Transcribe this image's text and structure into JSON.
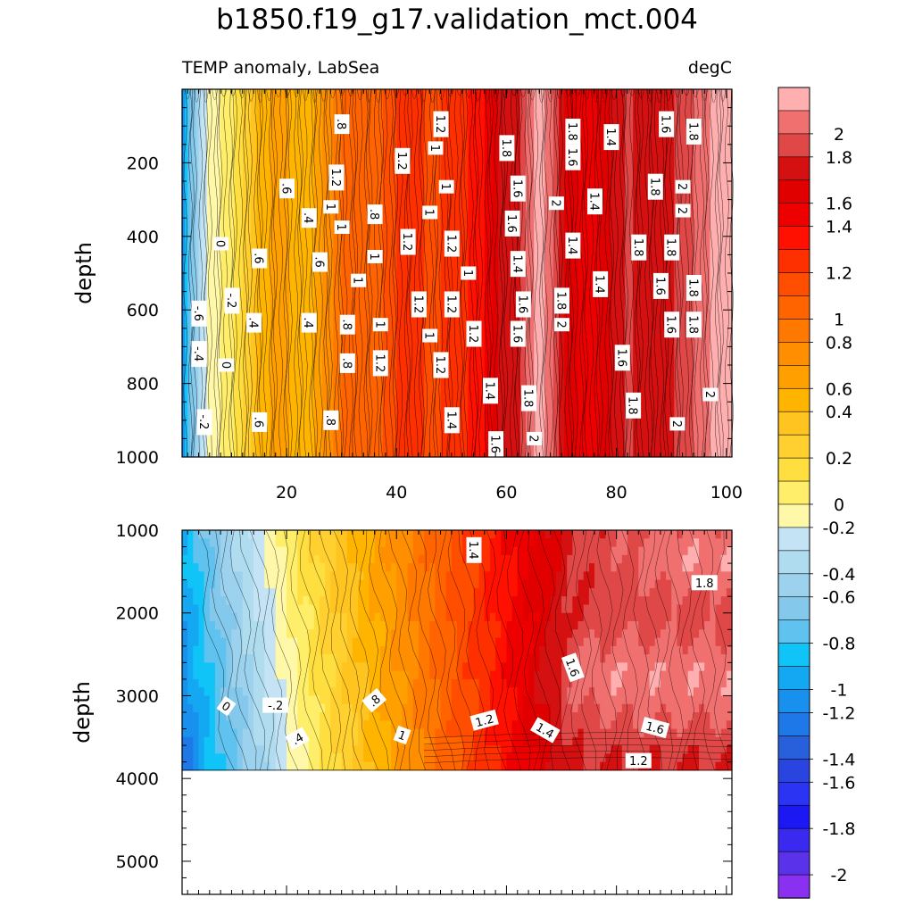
{
  "title": "b1850.f19_g17.validation_mct.004",
  "chart_data": [
    {
      "type": "contour",
      "panel": "upper",
      "left_label": "TEMP anomaly, LabSea",
      "right_label": "degC",
      "ylabel": "depth",
      "xlabel": "",
      "xlim": [
        1,
        101
      ],
      "ylim": [
        1000,
        0
      ],
      "x_ticks": [
        "20",
        "40",
        "60",
        "80",
        "100"
      ],
      "y_ticks": [
        "200",
        "400",
        "600",
        "800",
        "1000"
      ],
      "contour_labels": [
        {
          "text": "-.6",
          "x": 4,
          "y": 610
        },
        {
          "text": "-.4",
          "x": 4,
          "y": 720
        },
        {
          "text": "-.2",
          "x": 5,
          "y": 905
        },
        {
          "text": "0",
          "x": 8,
          "y": 420
        },
        {
          "text": "0",
          "x": 9,
          "y": 750
        },
        {
          "text": "-.2",
          "x": 10,
          "y": 575
        },
        {
          "text": ".4",
          "x": 14,
          "y": 635
        },
        {
          "text": ".6",
          "x": 15,
          "y": 460
        },
        {
          "text": ".6",
          "x": 15,
          "y": 905
        },
        {
          "text": ".6",
          "x": 20,
          "y": 270
        },
        {
          "text": ".4",
          "x": 24,
          "y": 350
        },
        {
          "text": ".4",
          "x": 24,
          "y": 635
        },
        {
          "text": ".6",
          "x": 26,
          "y": 470
        },
        {
          "text": ".8",
          "x": 28,
          "y": 900
        },
        {
          "text": "1",
          "x": 28,
          "y": 320
        },
        {
          "text": "1.2",
          "x": 29,
          "y": 240
        },
        {
          "text": "1",
          "x": 30,
          "y": 375
        },
        {
          "text": ".8",
          "x": 30,
          "y": 95
        },
        {
          "text": ".8",
          "x": 31,
          "y": 640
        },
        {
          "text": ".8",
          "x": 31,
          "y": 745
        },
        {
          "text": "1",
          "x": 33,
          "y": 520
        },
        {
          "text": "1",
          "x": 36,
          "y": 455
        },
        {
          "text": ".8",
          "x": 36,
          "y": 340
        },
        {
          "text": "1",
          "x": 37,
          "y": 640
        },
        {
          "text": "1.2",
          "x": 37,
          "y": 745
        },
        {
          "text": "1.2",
          "x": 41,
          "y": 195
        },
        {
          "text": "1.2",
          "x": 42,
          "y": 415
        },
        {
          "text": "1.2",
          "x": 44,
          "y": 585
        },
        {
          "text": "1",
          "x": 46,
          "y": 335
        },
        {
          "text": "1",
          "x": 47,
          "y": 160
        },
        {
          "text": "1.2",
          "x": 48,
          "y": 95
        },
        {
          "text": "1",
          "x": 46,
          "y": 670
        },
        {
          "text": "1.2",
          "x": 48,
          "y": 750
        },
        {
          "text": "1",
          "x": 49,
          "y": 265
        },
        {
          "text": "1.2",
          "x": 50,
          "y": 420
        },
        {
          "text": "1.2",
          "x": 50,
          "y": 585
        },
        {
          "text": "1.4",
          "x": 50,
          "y": 900
        },
        {
          "text": "1",
          "x": 53,
          "y": 500
        },
        {
          "text": "1.2",
          "x": 54,
          "y": 665
        },
        {
          "text": "1.4",
          "x": 57,
          "y": 820
        },
        {
          "text": "1.6",
          "x": 58,
          "y": 965
        },
        {
          "text": "1.8",
          "x": 60,
          "y": 160
        },
        {
          "text": "1.6",
          "x": 61,
          "y": 365
        },
        {
          "text": "1.6",
          "x": 62,
          "y": 270
        },
        {
          "text": "1.4",
          "x": 62,
          "y": 475
        },
        {
          "text": "1.6",
          "x": 62,
          "y": 665
        },
        {
          "text": "1.6",
          "x": 63,
          "y": 585
        },
        {
          "text": "1.8",
          "x": 64,
          "y": 840
        },
        {
          "text": "2",
          "x": 65,
          "y": 950
        },
        {
          "text": "2",
          "x": 69,
          "y": 310
        },
        {
          "text": "1.8",
          "x": 70,
          "y": 575
        },
        {
          "text": "2",
          "x": 70,
          "y": 640
        },
        {
          "text": "1.8",
          "x": 72,
          "y": 115
        },
        {
          "text": "1.6",
          "x": 72,
          "y": 185
        },
        {
          "text": "1.4",
          "x": 72,
          "y": 425
        },
        {
          "text": "1.4",
          "x": 76,
          "y": 305
        },
        {
          "text": "1.4",
          "x": 77,
          "y": 530
        },
        {
          "text": "1.4",
          "x": 79,
          "y": 130
        },
        {
          "text": "1.6",
          "x": 81,
          "y": 730
        },
        {
          "text": "1.8",
          "x": 83,
          "y": 860
        },
        {
          "text": "1.8",
          "x": 84,
          "y": 430
        },
        {
          "text": "1.8",
          "x": 87,
          "y": 265
        },
        {
          "text": "1.6",
          "x": 88,
          "y": 535
        },
        {
          "text": "1.6",
          "x": 89,
          "y": 95
        },
        {
          "text": "1.6",
          "x": 90,
          "y": 640
        },
        {
          "text": "1.8",
          "x": 90,
          "y": 430
        },
        {
          "text": "2",
          "x": 91,
          "y": 910
        },
        {
          "text": "2",
          "x": 92,
          "y": 265
        },
        {
          "text": "2",
          "x": 92,
          "y": 330
        },
        {
          "text": "1.8",
          "x": 94,
          "y": 540
        },
        {
          "text": "1.8",
          "x": 94,
          "y": 640
        },
        {
          "text": "1.8",
          "x": 94,
          "y": 115
        },
        {
          "text": "2",
          "x": 97,
          "y": 830
        }
      ]
    },
    {
      "type": "contour",
      "panel": "lower",
      "left_label": "",
      "right_label": "",
      "ylabel": "depth",
      "xlabel": "",
      "xlim": [
        1,
        101
      ],
      "ylim": [
        5400,
        1000
      ],
      "data_bottom_depth": 3900,
      "x_ticks": [],
      "y_ticks": [
        "1000",
        "2000",
        "3000",
        "4000",
        "5000"
      ],
      "contour_labels": [
        {
          "text": "0",
          "x": 9,
          "y": 3130
        },
        {
          "text": "-.2",
          "x": 18,
          "y": 3120
        },
        {
          "text": ".4",
          "x": 22,
          "y": 3520
        },
        {
          "text": ".8",
          "x": 36,
          "y": 3060
        },
        {
          "text": "1",
          "x": 41,
          "y": 3480
        },
        {
          "text": "1.4",
          "x": 54,
          "y": 1240
        },
        {
          "text": "1.2",
          "x": 56,
          "y": 3300
        },
        {
          "text": "1.4",
          "x": 67,
          "y": 3420
        },
        {
          "text": "1.6",
          "x": 72,
          "y": 2660
        },
        {
          "text": "1.6",
          "x": 87,
          "y": 3390
        },
        {
          "text": "1.2",
          "x": 84,
          "y": 3790
        },
        {
          "text": "1.8",
          "x": 96,
          "y": 1640
        }
      ]
    },
    {
      "type": "colorbar",
      "levels": [
        "2",
        "1.8",
        "1.6",
        "1.4",
        "1.2",
        "1",
        "0.8",
        "0.6",
        "0.4",
        "0.2",
        "0",
        "-0.2",
        "-0.4",
        "-0.6",
        "-0.8",
        "-1",
        "-1.2",
        "-1.4",
        "-1.6",
        "-1.8",
        "-2"
      ],
      "colors": [
        "#FFAFAF",
        "#F07070",
        "#E04848",
        "#D41010",
        "#E00000",
        "#EF0000",
        "#FF1000",
        "#FF3000",
        "#FF4E00",
        "#FF6400",
        "#FF7800",
        "#FF8E00",
        "#FFA000",
        "#FFB400",
        "#FFC420",
        "#FFD030",
        "#FFDF40",
        "#FFEE6A",
        "#FFF8A8",
        "#C4E4F6",
        "#B0DCF0",
        "#9CD2EE",
        "#84C8EC",
        "#60C2EE",
        "#10C4F8",
        "#14A8F2",
        "#1890EE",
        "#1E78E8",
        "#2860DC",
        "#2A44E0",
        "#2A34F2",
        "#1C18F4",
        "#3A2AF0",
        "#5A32EA",
        "#8A30F0"
      ]
    }
  ]
}
